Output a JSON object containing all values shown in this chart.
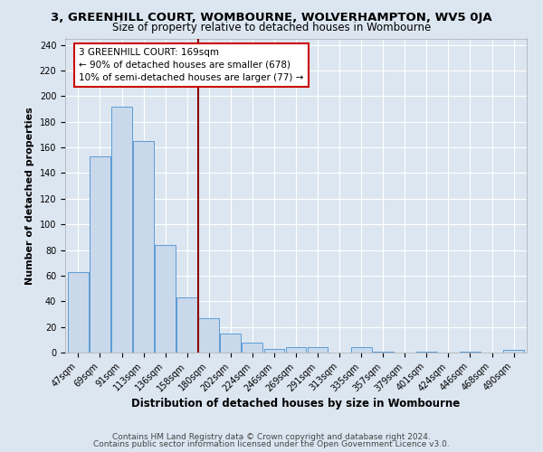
{
  "title_line1": "3, GREENHILL COURT, WOMBOURNE, WOLVERHAMPTON, WV5 0JA",
  "title_line2": "Size of property relative to detached houses in Wombourne",
  "xlabel": "Distribution of detached houses by size in Wombourne",
  "ylabel": "Number of detached properties",
  "categories": [
    "47sqm",
    "69sqm",
    "91sqm",
    "113sqm",
    "136sqm",
    "158sqm",
    "180sqm",
    "202sqm",
    "224sqm",
    "246sqm",
    "269sqm",
    "291sqm",
    "313sqm",
    "335sqm",
    "357sqm",
    "379sqm",
    "401sqm",
    "424sqm",
    "446sqm",
    "468sqm",
    "490sqm"
  ],
  "values": [
    63,
    153,
    192,
    165,
    84,
    43,
    27,
    15,
    8,
    3,
    4,
    4,
    0,
    4,
    1,
    0,
    1,
    0,
    1,
    0,
    2
  ],
  "bar_color": "#c9d9eb",
  "bar_edge_color": "#5b9bd5",
  "vline_color": "#8b0000",
  "annotation_title": "3 GREENHILL COURT: 169sqm",
  "annotation_line2": "← 90% of detached houses are smaller (678)",
  "annotation_line3": "10% of semi-detached houses are larger (77) →",
  "annotation_box_color": "#ffffff",
  "annotation_box_edge_color": "#cc0000",
  "ylim": [
    0,
    245
  ],
  "yticks": [
    0,
    20,
    40,
    60,
    80,
    100,
    120,
    140,
    160,
    180,
    200,
    220,
    240
  ],
  "footer1": "Contains HM Land Registry data © Crown copyright and database right 2024.",
  "footer2": "Contains public sector information licensed under the Open Government Licence v3.0.",
  "background_color": "#dce6f1",
  "plot_bg_color": "#dce6f1",
  "grid_color": "#ffffff",
  "title_fontsize": 9.5,
  "subtitle_fontsize": 8.5,
  "xlabel_fontsize": 8.5,
  "ylabel_fontsize": 8,
  "tick_fontsize": 7,
  "annotation_fontsize": 7.5,
  "footer_fontsize": 6.5
}
